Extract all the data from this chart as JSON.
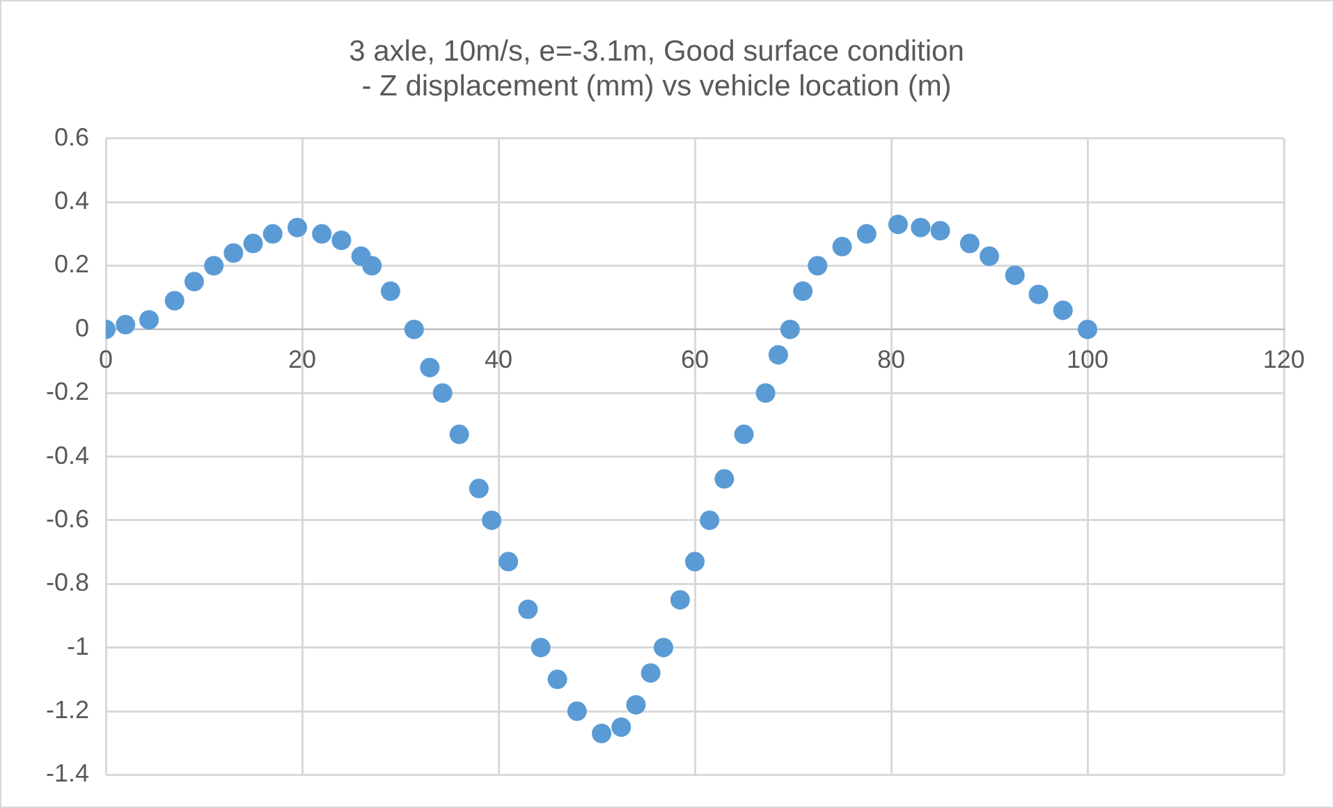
{
  "chart_data": {
    "type": "scatter",
    "title": "3 axle, 10m/s, e=-3.1m, Good surface condition\n- Z displacement (mm) vs vehicle location (m)",
    "x": [
      0,
      2,
      4.4,
      7,
      9,
      11,
      13,
      15,
      17,
      19.5,
      22,
      24,
      26,
      27.1,
      29,
      31.4,
      33,
      34.3,
      36,
      38,
      39.3,
      41,
      43,
      44.3,
      46,
      48,
      50.5,
      52.5,
      54,
      55.5,
      56.8,
      58.5,
      60,
      61.5,
      63,
      65,
      67.2,
      68.5,
      69.7,
      71,
      72.5,
      75,
      77.5,
      80.7,
      83,
      85,
      88,
      90,
      92.6,
      95,
      97.5,
      100
    ],
    "series": [
      {
        "color": "#5b9bd5",
        "values": [
          0,
          0.015,
          0.03,
          0.09,
          0.15,
          0.2,
          0.24,
          0.27,
          0.3,
          0.32,
          0.3,
          0.28,
          0.23,
          0.2,
          0.12,
          0,
          -0.12,
          -0.2,
          -0.33,
          -0.5,
          -0.6,
          -0.73,
          -0.88,
          -1,
          -1.1,
          -1.2,
          -1.27,
          -1.25,
          -1.18,
          -1.08,
          -1,
          -0.85,
          -0.73,
          -0.6,
          -0.47,
          -0.33,
          -0.2,
          -0.08,
          0,
          0.12,
          0.2,
          0.26,
          0.3,
          0.33,
          0.32,
          0.31,
          0.27,
          0.23,
          0.17,
          0.11,
          0.06,
          0
        ]
      }
    ],
    "xlim": [
      0,
      120
    ],
    "xticks": [
      0,
      20,
      40,
      60,
      80,
      100,
      120
    ],
    "ylim": [
      -1.4,
      0.6
    ],
    "yticks": [
      -1.4,
      -1.2,
      -1,
      -0.8,
      -0.6,
      -0.4,
      -0.2,
      0,
      0.2,
      0.4,
      0.6
    ],
    "grid": true,
    "marker": "circle",
    "legend": false
  }
}
